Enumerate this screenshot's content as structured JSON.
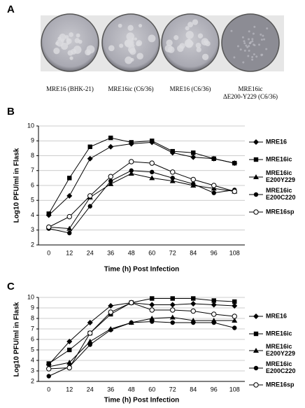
{
  "figure": {
    "panel_labels": [
      "A",
      "B",
      "C"
    ],
    "plate_captions": [
      [
        "MRE16 (BHK-21)"
      ],
      [
        "MRE16ic (C6/36)"
      ],
      [
        "MRE16 (C6/36)"
      ],
      [
        "MRE16ic",
        "ΔE200-Y229 (C6/36)"
      ]
    ]
  },
  "chart_data": [
    {
      "type": "line",
      "x_label": "Time (h) Post Infection",
      "y_label": "Log10 PFU/ml in Flask",
      "categories": [
        "0",
        "12",
        "24",
        "36",
        "48",
        "60",
        "72",
        "84",
        "96",
        "108"
      ],
      "ylim": [
        2,
        10
      ],
      "yticks": [
        2,
        3,
        4,
        5,
        6,
        7,
        8,
        9,
        10
      ],
      "grid": true,
      "series": [
        {
          "name": "MRE16",
          "color": "#000000",
          "marker": "diamond",
          "values": [
            4.0,
            5.3,
            7.8,
            8.6,
            8.8,
            8.9,
            8.2,
            7.9,
            7.8,
            7.5
          ]
        },
        {
          "name": "MRE16ic",
          "color": "#000000",
          "marker": "square",
          "values": [
            4.1,
            6.5,
            8.6,
            9.2,
            8.9,
            9.0,
            8.3,
            8.2,
            7.8,
            7.5
          ]
        },
        {
          "name": "MRE16ic E200Y229",
          "color": "#000000",
          "marker": "triangle",
          "values": [
            3.2,
            3.1,
            5.2,
            6.1,
            6.8,
            6.5,
            6.3,
            6.0,
            5.8,
            5.6
          ]
        },
        {
          "name": "MRE16ic E200C220",
          "color": "#000000",
          "marker": "circle",
          "values": [
            3.1,
            2.8,
            4.6,
            6.3,
            7.0,
            6.9,
            6.5,
            6.1,
            5.5,
            5.7
          ]
        },
        {
          "name": "MRE16sp",
          "color": "#000000",
          "marker": "open-circle",
          "values": [
            3.2,
            3.9,
            5.3,
            6.6,
            7.6,
            7.5,
            6.9,
            6.4,
            6.0,
            5.6
          ]
        }
      ]
    },
    {
      "type": "line",
      "x_label": "Time (h) Post Infection",
      "y_label": "Log10 PFU/ml in Flask",
      "categories": [
        "0",
        "12",
        "24",
        "36",
        "48",
        "60",
        "72",
        "84",
        "96",
        "108"
      ],
      "ylim": [
        2,
        10
      ],
      "yticks": [
        2,
        3,
        4,
        5,
        6,
        7,
        8,
        9,
        10
      ],
      "grid": true,
      "series": [
        {
          "name": "MRE16",
          "color": "#000000",
          "marker": "diamond",
          "values": [
            3.6,
            5.8,
            7.6,
            9.2,
            9.5,
            9.3,
            9.3,
            9.4,
            9.3,
            9.2
          ]
        },
        {
          "name": "MRE16ic",
          "color": "#000000",
          "marker": "square",
          "values": [
            3.7,
            5.0,
            6.6,
            8.4,
            9.5,
            9.9,
            9.9,
            9.9,
            9.7,
            9.6
          ]
        },
        {
          "name": "MRE16ic E200Y229",
          "color": "#000000",
          "marker": "triangle",
          "values": [
            3.4,
            3.8,
            5.8,
            7.0,
            7.6,
            8.0,
            8.1,
            7.8,
            7.8,
            7.8
          ]
        },
        {
          "name": "MRE16ic E200C220",
          "color": "#000000",
          "marker": "circle",
          "values": [
            2.5,
            3.4,
            5.5,
            6.9,
            7.6,
            7.7,
            7.6,
            7.6,
            7.6,
            7.1
          ]
        },
        {
          "name": "MRE16sp",
          "color": "#000000",
          "marker": "open-circle",
          "values": [
            3.2,
            3.3,
            6.6,
            8.6,
            9.5,
            8.8,
            8.8,
            8.7,
            8.4,
            8.2
          ]
        }
      ]
    }
  ]
}
